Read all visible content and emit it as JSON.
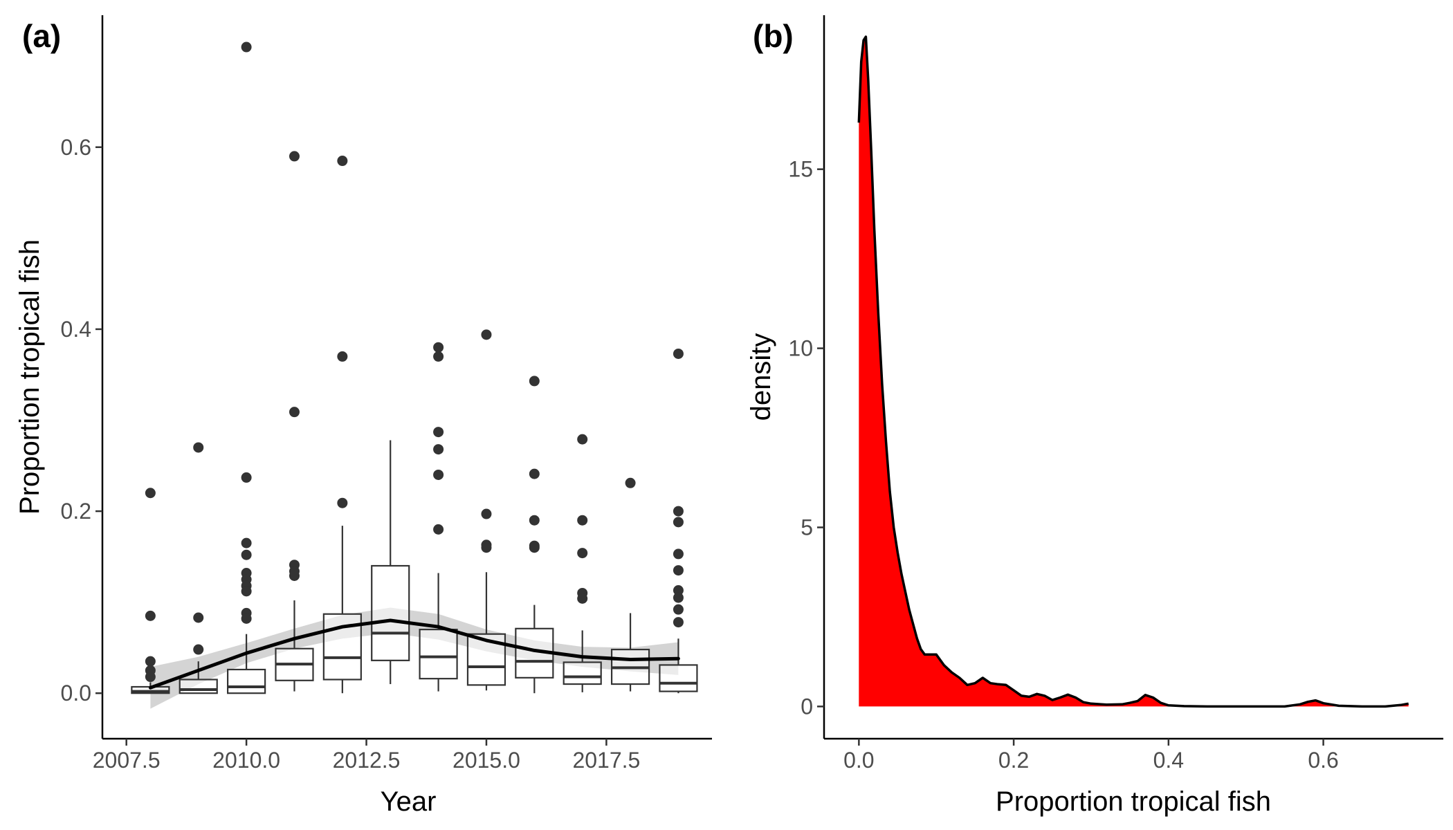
{
  "chart_data": [
    {
      "type": "box",
      "panel_label": "(a)",
      "xlabel": "Year",
      "ylabel": "Proportion tropical fish",
      "xlim": [
        2007.0,
        2019.7
      ],
      "ylim": [
        -0.05,
        0.745
      ],
      "x_ticks": [
        2007.5,
        2010.0,
        2012.5,
        2015.0,
        2017.5
      ],
      "x_tick_labels": [
        "2007.5",
        "2010.0",
        "2012.5",
        "2015.0",
        "2017.5"
      ],
      "y_ticks": [
        0.0,
        0.2,
        0.4,
        0.6
      ],
      "y_tick_labels": [
        "0.0",
        "0.2",
        "0.4",
        "0.6"
      ],
      "grid": false,
      "boxes": [
        {
          "x": 2008,
          "min": 0.0,
          "q1": 0.0,
          "median": 0.002,
          "q3": 0.007,
          "max": 0.012,
          "outliers": [
            0.22,
            0.085,
            0.035,
            0.025,
            0.018
          ]
        },
        {
          "x": 2009,
          "min": 0.0,
          "q1": 0.0,
          "median": 0.004,
          "q3": 0.015,
          "max": 0.035,
          "outliers": [
            0.27,
            0.083,
            0.048
          ]
        },
        {
          "x": 2010,
          "min": 0.0,
          "q1": 0.0,
          "median": 0.007,
          "q3": 0.026,
          "max": 0.065,
          "outliers": [
            0.71,
            0.237,
            0.165,
            0.152,
            0.132,
            0.125,
            0.118,
            0.112,
            0.088,
            0.082
          ]
        },
        {
          "x": 2011,
          "min": 0.002,
          "q1": 0.014,
          "median": 0.032,
          "q3": 0.049,
          "max": 0.102,
          "outliers": [
            0.59,
            0.309,
            0.141,
            0.134,
            0.129
          ]
        },
        {
          "x": 2012,
          "min": 0.0,
          "q1": 0.015,
          "median": 0.039,
          "q3": 0.087,
          "max": 0.184,
          "outliers": [
            0.585,
            0.37,
            0.209
          ]
        },
        {
          "x": 2013,
          "min": 0.01,
          "q1": 0.036,
          "median": 0.066,
          "q3": 0.14,
          "max": 0.278,
          "outliers": []
        },
        {
          "x": 2014,
          "min": 0.002,
          "q1": 0.016,
          "median": 0.04,
          "q3": 0.07,
          "max": 0.132,
          "outliers": [
            0.38,
            0.37,
            0.287,
            0.268,
            0.24,
            0.18
          ]
        },
        {
          "x": 2015,
          "min": 0.003,
          "q1": 0.009,
          "median": 0.029,
          "q3": 0.065,
          "max": 0.133,
          "outliers": [
            0.394,
            0.197,
            0.163,
            0.16
          ]
        },
        {
          "x": 2016,
          "min": 0.0,
          "q1": 0.017,
          "median": 0.035,
          "q3": 0.071,
          "max": 0.097,
          "outliers": [
            0.343,
            0.241,
            0.19,
            0.162,
            0.16
          ]
        },
        {
          "x": 2017,
          "min": 0.001,
          "q1": 0.01,
          "median": 0.018,
          "q3": 0.034,
          "max": 0.069,
          "outliers": [
            0.279,
            0.19,
            0.154,
            0.11,
            0.104
          ]
        },
        {
          "x": 2018,
          "min": 0.002,
          "q1": 0.01,
          "median": 0.028,
          "q3": 0.048,
          "max": 0.088,
          "outliers": [
            0.231
          ]
        },
        {
          "x": 2019,
          "min": 0.0,
          "q1": 0.002,
          "median": 0.011,
          "q3": 0.031,
          "max": 0.06,
          "outliers": [
            0.373,
            0.2,
            0.188,
            0.153,
            0.135,
            0.113,
            0.105,
            0.092,
            0.078
          ]
        }
      ],
      "smooth": {
        "color": "#000000",
        "band_color": "#cccccc",
        "x": [
          2008,
          2009,
          2010,
          2011,
          2012,
          2013,
          2014,
          2015,
          2016,
          2017,
          2018,
          2019
        ],
        "fit": [
          0.006,
          0.025,
          0.044,
          0.06,
          0.073,
          0.08,
          0.073,
          0.058,
          0.047,
          0.04,
          0.037,
          0.038
        ],
        "lower": [
          -0.017,
          0.01,
          0.033,
          0.049,
          0.06,
          0.066,
          0.059,
          0.046,
          0.036,
          0.029,
          0.024,
          0.02
        ],
        "upper": [
          0.029,
          0.04,
          0.055,
          0.071,
          0.086,
          0.094,
          0.087,
          0.07,
          0.058,
          0.051,
          0.05,
          0.056
        ]
      }
    },
    {
      "type": "area",
      "panel_label": "(b)",
      "xlabel": "Proportion tropical fish",
      "ylabel": "density",
      "xlim": [
        -0.045,
        0.755
      ],
      "ylim": [
        -0.9,
        19.3
      ],
      "x_ticks": [
        0.0,
        0.2,
        0.4,
        0.6
      ],
      "x_tick_labels": [
        "0.0",
        "0.2",
        "0.4",
        "0.6"
      ],
      "y_ticks": [
        0,
        5,
        10,
        15
      ],
      "y_tick_labels": [
        "0",
        "5",
        "10",
        "15"
      ],
      "grid": false,
      "fill_color": "#ff0000",
      "line_color": "#000000",
      "x": [
        0.0,
        0.003,
        0.006,
        0.009,
        0.012,
        0.016,
        0.02,
        0.025,
        0.03,
        0.035,
        0.04,
        0.045,
        0.05,
        0.055,
        0.06,
        0.065,
        0.07,
        0.075,
        0.08,
        0.085,
        0.09,
        0.1,
        0.11,
        0.12,
        0.13,
        0.14,
        0.15,
        0.16,
        0.17,
        0.18,
        0.19,
        0.2,
        0.21,
        0.22,
        0.23,
        0.24,
        0.25,
        0.26,
        0.27,
        0.28,
        0.29,
        0.3,
        0.32,
        0.34,
        0.35,
        0.36,
        0.37,
        0.38,
        0.39,
        0.4,
        0.42,
        0.45,
        0.5,
        0.55,
        0.57,
        0.58,
        0.59,
        0.6,
        0.62,
        0.65,
        0.68,
        0.7,
        0.71
      ],
      "y": [
        16.3,
        18.0,
        18.6,
        18.7,
        17.5,
        15.5,
        13.3,
        11.0,
        9.0,
        7.4,
        6.0,
        5.0,
        4.3,
        3.7,
        3.2,
        2.7,
        2.3,
        1.9,
        1.6,
        1.45,
        1.45,
        1.45,
        1.15,
        0.95,
        0.8,
        0.6,
        0.65,
        0.8,
        0.65,
        0.62,
        0.6,
        0.45,
        0.3,
        0.27,
        0.35,
        0.3,
        0.18,
        0.25,
        0.33,
        0.25,
        0.12,
        0.08,
        0.05,
        0.06,
        0.1,
        0.15,
        0.32,
        0.25,
        0.1,
        0.03,
        0.01,
        0.0,
        0.0,
        0.0,
        0.06,
        0.13,
        0.17,
        0.09,
        0.02,
        0.0,
        0.0,
        0.04,
        0.08
      ]
    }
  ]
}
